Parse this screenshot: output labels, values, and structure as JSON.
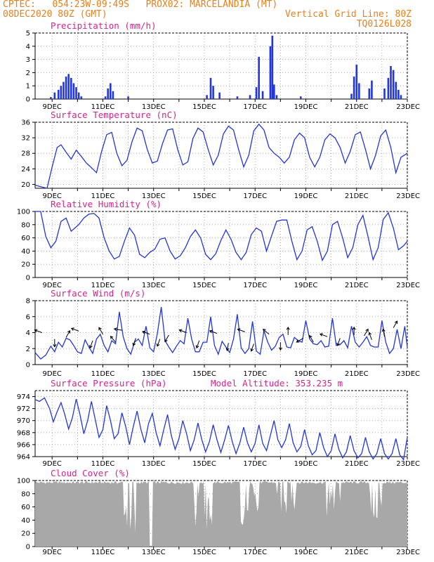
{
  "header": {
    "line1_left": "CPTEC:   054:23W-09:49S   PROX02: MARCELANDIA (MT)",
    "line2_left": "08DEC2020 80Z (GMT)",
    "line2_right": "Vertical Grid Line: 80Z",
    "line3_right": "TQ0126L028"
  },
  "colors": {
    "header": "#e8801c",
    "title": "#e0208c",
    "line": "#2236e0",
    "cloud": "#a8a8a8",
    "grid": "#999999"
  },
  "x_ticks": [
    "9DEC",
    "11DEC",
    "13DEC",
    "15DEC",
    "17DEC",
    "19DEC",
    "21DEC",
    "23DEC"
  ],
  "chart_data": [
    {
      "type": "bar",
      "title": "Precipitation (mm/h)",
      "ylim": [
        0,
        5
      ],
      "yticks": [
        0,
        1,
        2,
        3,
        4,
        5
      ],
      "x_range_days": [
        8.33,
        23.0
      ],
      "bars": [
        [
          8.95,
          0.15
        ],
        [
          9.1,
          0.5
        ],
        [
          9.25,
          0.7
        ],
        [
          9.35,
          1.0
        ],
        [
          9.45,
          1.3
        ],
        [
          9.55,
          1.7
        ],
        [
          9.65,
          1.9
        ],
        [
          9.75,
          1.6
        ],
        [
          9.85,
          1.2
        ],
        [
          9.95,
          0.9
        ],
        [
          10.05,
          0.5
        ],
        [
          10.15,
          0.2
        ],
        [
          11.1,
          0.2
        ],
        [
          11.2,
          0.8
        ],
        [
          11.3,
          1.2
        ],
        [
          11.4,
          0.6
        ],
        [
          12.0,
          0.2
        ],
        [
          15.1,
          0.3
        ],
        [
          15.25,
          1.6
        ],
        [
          15.35,
          1.0
        ],
        [
          15.6,
          0.5
        ],
        [
          16.3,
          0.2
        ],
        [
          16.8,
          0.3
        ],
        [
          17.05,
          0.9
        ],
        [
          17.15,
          3.2
        ],
        [
          17.3,
          0.6
        ],
        [
          17.6,
          4.0
        ],
        [
          17.68,
          4.8
        ],
        [
          17.75,
          1.1
        ],
        [
          17.85,
          0.3
        ],
        [
          18.8,
          0.2
        ],
        [
          20.8,
          0.4
        ],
        [
          20.9,
          1.7
        ],
        [
          21.0,
          2.6
        ],
        [
          21.1,
          1.2
        ],
        [
          21.5,
          0.8
        ],
        [
          21.6,
          1.4
        ],
        [
          22.1,
          0.8
        ],
        [
          22.25,
          1.6
        ],
        [
          22.35,
          2.5
        ],
        [
          22.45,
          2.2
        ],
        [
          22.55,
          1.3
        ],
        [
          22.65,
          0.7
        ],
        [
          22.75,
          0.3
        ]
      ]
    },
    {
      "type": "line",
      "title": "Surface Temperature (nC)",
      "ylim": [
        19,
        36
      ],
      "yticks": [
        20,
        24,
        28,
        32,
        36
      ],
      "x": [
        8.33,
        8.6,
        8.8,
        9.0,
        9.2,
        9.35,
        9.55,
        9.75,
        9.95,
        10.15,
        10.35,
        10.55,
        10.75,
        10.95,
        11.15,
        11.35,
        11.55,
        11.75,
        11.95,
        12.15,
        12.35,
        12.55,
        12.75,
        12.95,
        13.15,
        13.35,
        13.55,
        13.75,
        13.95,
        14.15,
        14.35,
        14.55,
        14.75,
        14.95,
        15.15,
        15.35,
        15.55,
        15.75,
        15.95,
        16.15,
        16.35,
        16.55,
        16.75,
        16.95,
        17.15,
        17.35,
        17.55,
        17.75,
        17.95,
        18.15,
        18.35,
        18.55,
        18.75,
        18.95,
        19.15,
        19.35,
        19.55,
        19.75,
        19.95,
        20.15,
        20.35,
        20.55,
        20.75,
        20.95,
        21.15,
        21.35,
        21.55,
        21.75,
        21.95,
        22.15,
        22.35,
        22.55,
        22.75,
        23.0
      ],
      "y": [
        19.8,
        19.3,
        19.0,
        24.5,
        29.5,
        30.2,
        28.3,
        26.5,
        28.8,
        27.2,
        25.5,
        24.3,
        23.0,
        28.5,
        32.8,
        33.4,
        28.0,
        24.8,
        26.2,
        31.0,
        34.5,
        33.8,
        29.0,
        25.5,
        26.0,
        30.5,
        34.0,
        34.3,
        29.0,
        25.0,
        25.8,
        31.8,
        34.5,
        33.5,
        29.0,
        25.0,
        27.5,
        33.0,
        35.0,
        34.0,
        29.0,
        24.5,
        27.5,
        33.8,
        35.5,
        34.0,
        29.5,
        28.0,
        27.0,
        25.5,
        27.0,
        31.5,
        33.2,
        32.0,
        27.0,
        24.5,
        27.0,
        31.5,
        33.0,
        32.0,
        29.5,
        25.5,
        28.5,
        32.8,
        33.5,
        29.0,
        24.0,
        27.5,
        32.5,
        34.0,
        29.5,
        23.0,
        27.0,
        28.0
      ]
    },
    {
      "type": "line",
      "title": "Relative Humidity (%)",
      "ylim": [
        0,
        100
      ],
      "yticks": [
        0,
        20,
        40,
        60,
        80,
        100
      ],
      "x": [
        8.33,
        8.55,
        8.75,
        8.95,
        9.15,
        9.35,
        9.55,
        9.75,
        9.9,
        10.05,
        10.25,
        10.45,
        10.65,
        10.85,
        11.05,
        11.25,
        11.45,
        11.65,
        11.85,
        12.05,
        12.25,
        12.45,
        12.65,
        12.85,
        13.05,
        13.25,
        13.45,
        13.65,
        13.85,
        14.05,
        14.25,
        14.45,
        14.65,
        14.85,
        15.05,
        15.25,
        15.45,
        15.65,
        15.85,
        16.05,
        16.25,
        16.45,
        16.65,
        16.85,
        17.05,
        17.25,
        17.45,
        17.65,
        17.85,
        18.05,
        18.25,
        18.45,
        18.65,
        18.85,
        19.05,
        19.25,
        19.45,
        19.65,
        19.85,
        20.05,
        20.25,
        20.45,
        20.65,
        20.85,
        21.05,
        21.25,
        21.45,
        21.65,
        21.85,
        22.05,
        22.25,
        22.45,
        22.65,
        22.85,
        23.0
      ],
      "y": [
        100,
        100,
        62,
        45,
        55,
        85,
        90,
        70,
        75,
        80,
        90,
        96,
        97,
        90,
        60,
        40,
        28,
        32,
        55,
        75,
        64,
        35,
        30,
        38,
        43,
        58,
        60,
        40,
        28,
        33,
        45,
        62,
        72,
        60,
        35,
        27,
        36,
        56,
        72,
        58,
        38,
        27,
        38,
        65,
        75,
        70,
        40,
        63,
        85,
        87,
        87,
        55,
        27,
        40,
        72,
        77,
        55,
        26,
        40,
        80,
        85,
        60,
        30,
        45,
        80,
        94,
        62,
        27,
        45,
        88,
        98,
        75,
        42,
        48,
        55
      ]
    },
    {
      "type": "line",
      "title": "Surface Wind (m/s)",
      "ylim": [
        0,
        8
      ],
      "yticks": [
        0,
        2,
        4,
        6,
        8
      ],
      "x": [
        8.33,
        8.55,
        8.75,
        8.95,
        9.1,
        9.25,
        9.4,
        9.55,
        9.7,
        9.85,
        10.0,
        10.15,
        10.3,
        10.45,
        10.6,
        10.75,
        10.9,
        11.05,
        11.2,
        11.35,
        11.5,
        11.65,
        11.8,
        11.95,
        12.1,
        12.25,
        12.4,
        12.55,
        12.7,
        12.85,
        13.0,
        13.15,
        13.3,
        13.45,
        13.6,
        13.75,
        13.9,
        14.05,
        14.2,
        14.35,
        14.5,
        14.65,
        14.8,
        14.95,
        15.1,
        15.25,
        15.4,
        15.55,
        15.7,
        15.85,
        16.0,
        16.15,
        16.3,
        16.45,
        16.6,
        16.75,
        16.9,
        17.05,
        17.2,
        17.35,
        17.5,
        17.65,
        17.8,
        17.95,
        18.1,
        18.25,
        18.4,
        18.55,
        18.7,
        18.85,
        19.0,
        19.15,
        19.3,
        19.45,
        19.6,
        19.75,
        19.9,
        20.05,
        20.2,
        20.35,
        20.5,
        20.65,
        20.8,
        20.95,
        21.1,
        21.25,
        21.4,
        21.55,
        21.7,
        21.85,
        22.0,
        22.15,
        22.3,
        22.45,
        22.6,
        22.75,
        22.9,
        23.0
      ],
      "y": [
        1.5,
        0.7,
        1.2,
        2.3,
        1.6,
        2.8,
        2.2,
        3.3,
        3.1,
        2.4,
        1.6,
        1.4,
        3.1,
        2.2,
        1.4,
        3.2,
        3.8,
        2.4,
        1.6,
        3.0,
        2.6,
        6.6,
        3.5,
        2.0,
        1.3,
        2.8,
        3.2,
        2.4,
        4.8,
        2.1,
        1.6,
        3.9,
        7.2,
        3.0,
        2.2,
        1.5,
        2.3,
        3.0,
        2.6,
        5.8,
        3.2,
        1.6,
        1.6,
        2.8,
        2.8,
        6.0,
        2.4,
        1.3,
        2.9,
        2.2,
        1.5,
        3.2,
        6.3,
        2.1,
        1.4,
        2.0,
        5.4,
        1.7,
        1.3,
        4.2,
        2.8,
        1.8,
        2.3,
        3.4,
        3.8,
        2.2,
        2.1,
        3.4,
        3.0,
        2.8,
        5.5,
        3.2,
        2.6,
        2.5,
        3.0,
        2.2,
        2.3,
        5.8,
        2.4,
        2.5,
        3.0,
        2.1,
        4.8,
        2.8,
        2.2,
        2.8,
        3.5,
        2.4,
        2.2,
        2.2,
        5.5,
        2.8,
        1.4,
        2.0,
        4.4,
        2.0,
        4.8,
        2.2
      ],
      "barbs_note": "direction arrows"
    },
    {
      "type": "line",
      "title": "Surface Pressure (hPa)",
      "annotation": "Model Altitude: 353.235 m",
      "ylim": [
        964,
        975
      ],
      "yticks": [
        964,
        966,
        968,
        970,
        972,
        974
      ],
      "x": [
        8.33,
        8.5,
        8.7,
        8.9,
        9.05,
        9.2,
        9.35,
        9.5,
        9.65,
        9.8,
        9.95,
        10.1,
        10.25,
        10.4,
        10.55,
        10.7,
        10.85,
        11.0,
        11.15,
        11.3,
        11.45,
        11.6,
        11.75,
        11.9,
        12.05,
        12.2,
        12.35,
        12.5,
        12.65,
        12.8,
        12.95,
        13.1,
        13.25,
        13.4,
        13.55,
        13.7,
        13.85,
        14.0,
        14.15,
        14.3,
        14.45,
        14.6,
        14.75,
        14.9,
        15.05,
        15.2,
        15.35,
        15.5,
        15.65,
        15.8,
        15.95,
        16.1,
        16.25,
        16.4,
        16.55,
        16.7,
        16.85,
        17.0,
        17.15,
        17.3,
        17.45,
        17.6,
        17.75,
        17.9,
        18.05,
        18.2,
        18.35,
        18.5,
        18.65,
        18.8,
        18.95,
        19.1,
        19.25,
        19.4,
        19.55,
        19.7,
        19.85,
        20.0,
        20.15,
        20.3,
        20.45,
        20.6,
        20.75,
        20.9,
        21.05,
        21.2,
        21.35,
        21.5,
        21.65,
        21.8,
        21.95,
        22.1,
        22.25,
        22.4,
        22.55,
        22.7,
        22.85,
        23.0
      ],
      "y": [
        973.5,
        973.2,
        973.8,
        972.0,
        969.8,
        971.5,
        973.0,
        971.0,
        968.6,
        970.5,
        973.6,
        971.0,
        967.8,
        970.0,
        973.2,
        970.2,
        967.2,
        968.5,
        972.5,
        970.0,
        967.0,
        967.8,
        971.3,
        969.0,
        966.0,
        969.0,
        971.6,
        968.5,
        966.3,
        969.5,
        971.2,
        968.0,
        965.8,
        968.5,
        971.0,
        967.5,
        965.2,
        967.0,
        970.0,
        967.8,
        965.0,
        966.8,
        969.6,
        966.8,
        964.8,
        966.5,
        969.3,
        966.8,
        964.7,
        966.8,
        969.2,
        966.5,
        964.5,
        966.3,
        968.9,
        966.3,
        964.8,
        966.2,
        969.3,
        966.2,
        965.0,
        967.5,
        970.0,
        966.8,
        965.5,
        966.8,
        969.5,
        966.3,
        964.8,
        965.7,
        968.5,
        965.8,
        964.3,
        965.0,
        968.0,
        965.5,
        964.0,
        965.0,
        967.8,
        965.2,
        963.8,
        964.8,
        967.5,
        965.0,
        963.8,
        964.5,
        967.2,
        964.8,
        963.6,
        964.5,
        967.0,
        964.5,
        963.6,
        964.5,
        967.0,
        964.3,
        963.5,
        967.2
      ]
    },
    {
      "type": "area",
      "title": "Cloud Cover (%)",
      "ylim": [
        0,
        100
      ],
      "yticks": [
        0,
        20,
        40,
        60,
        80,
        100
      ]
    }
  ]
}
